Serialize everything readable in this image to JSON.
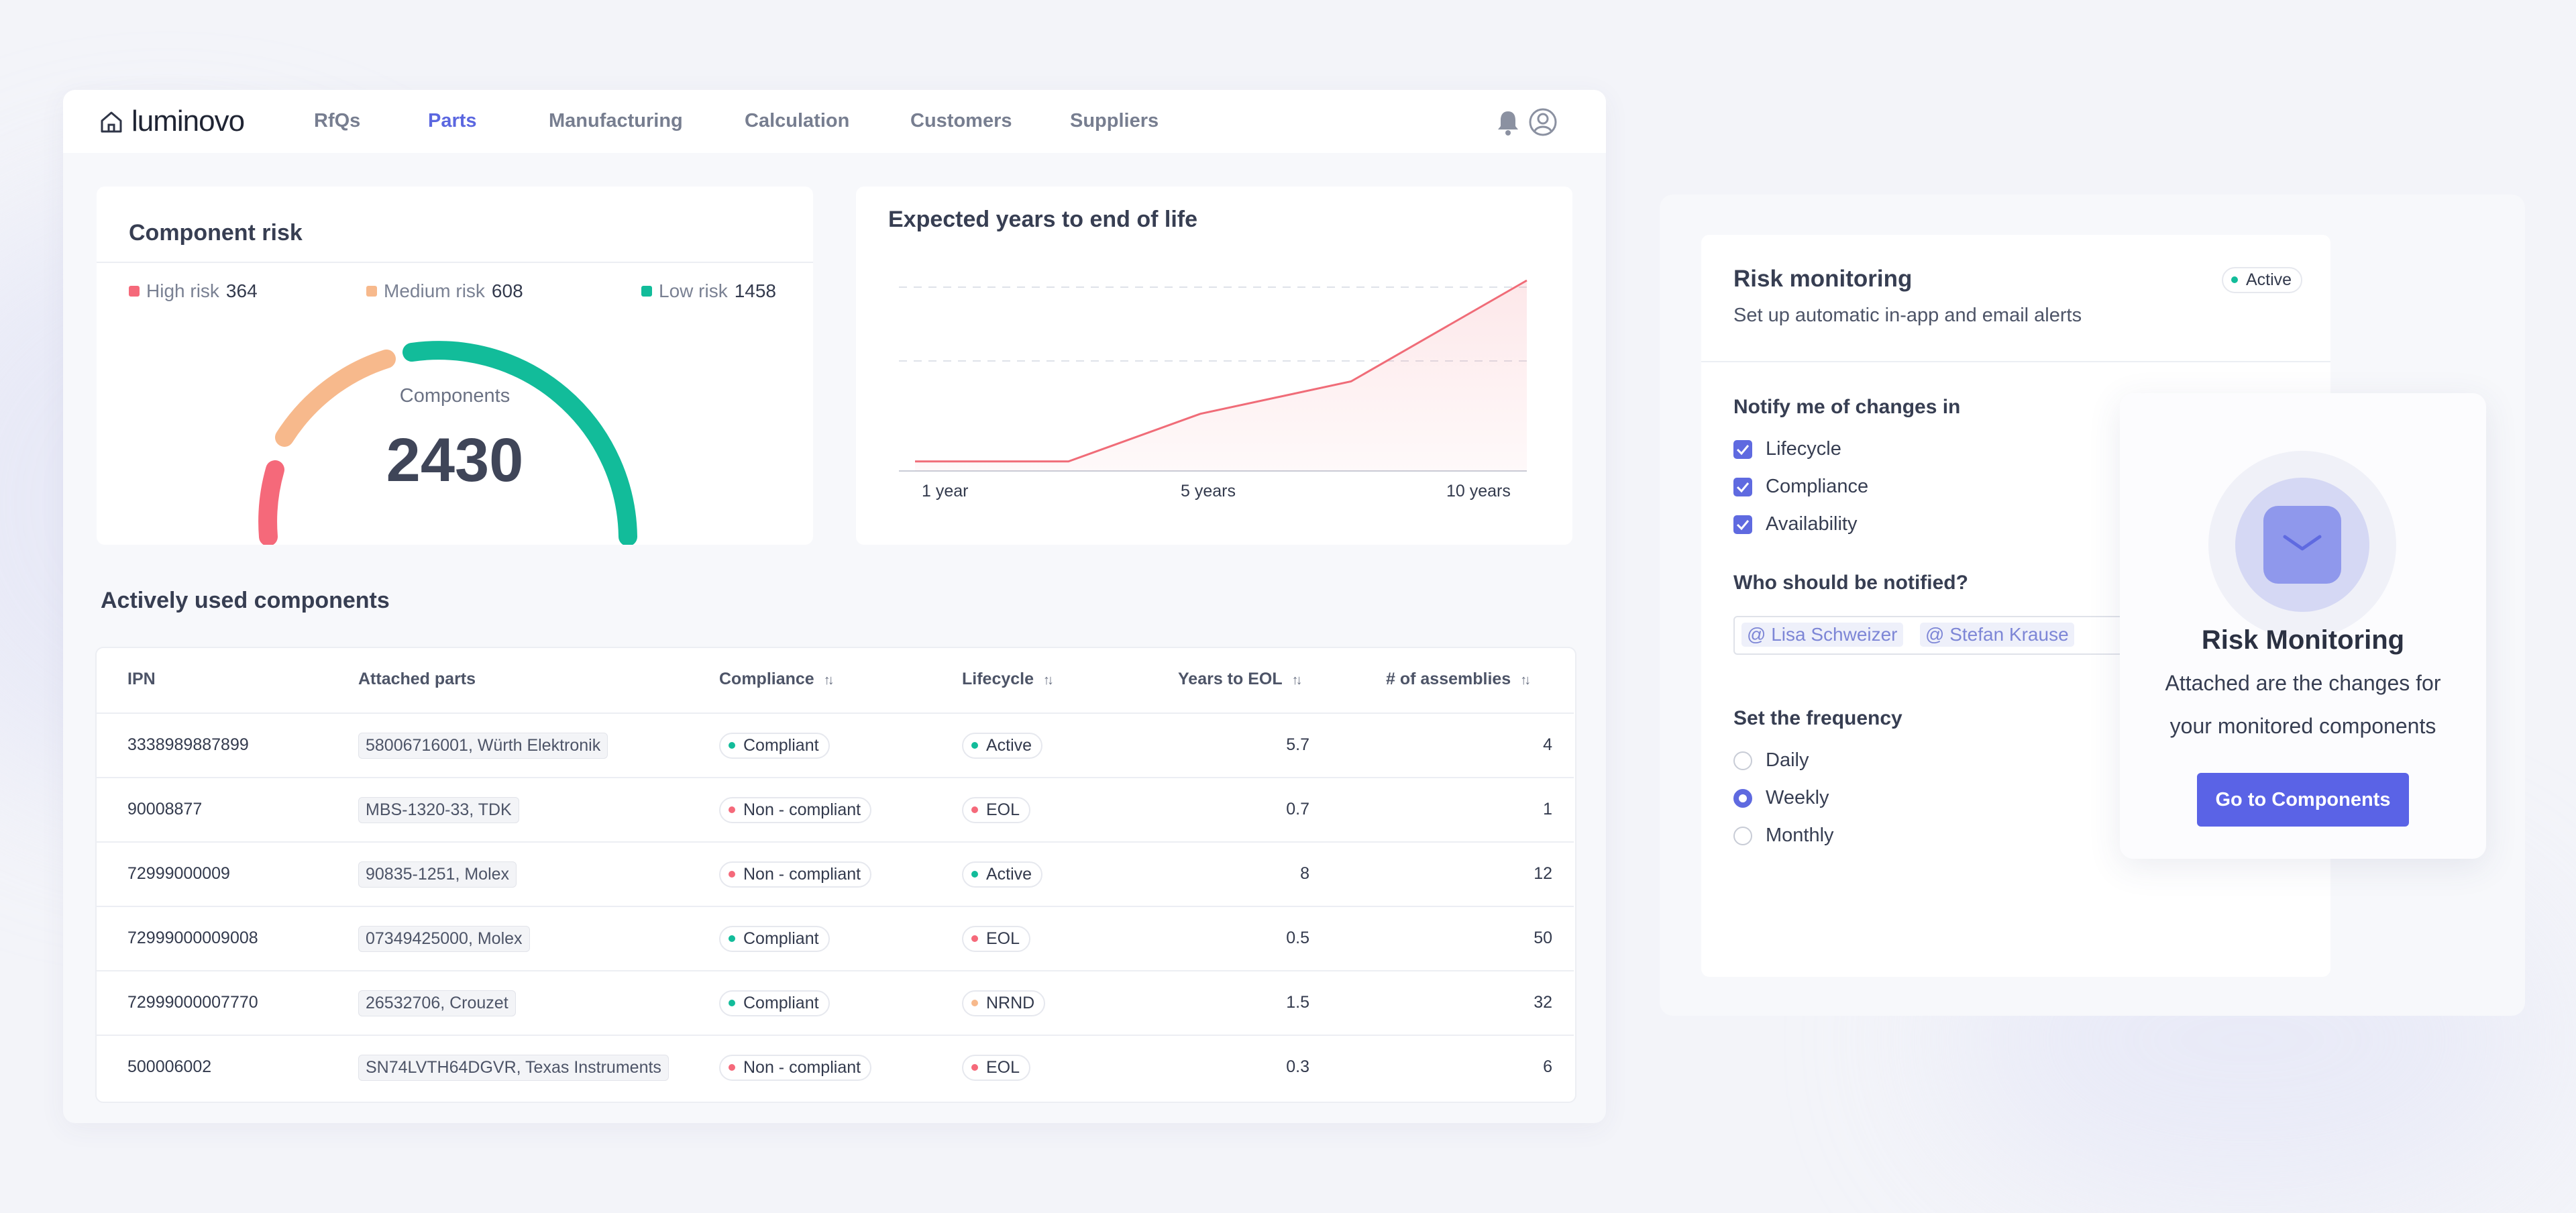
{
  "nav": {
    "logo": "luminovo",
    "items": [
      "RfQs",
      "Parts",
      "Manufacturing",
      "Calculation",
      "Customers",
      "Suppliers"
    ],
    "active": "Parts"
  },
  "risk": {
    "title": "Component risk",
    "high_label": "High risk",
    "high_value": "364",
    "medium_label": "Medium risk",
    "medium_value": "608",
    "low_label": "Low risk",
    "low_value": "1458",
    "gauge_label": "Components",
    "gauge_value": "2430",
    "colors": {
      "high": "#f5697a",
      "medium": "#f7b98c",
      "low": "#12bc9a"
    }
  },
  "eol_chart": {
    "title": "Expected years to end of life"
  },
  "chart_data": {
    "type": "area",
    "title": "Expected years to end of life",
    "x_tick_labels": [
      "1 year",
      "5 years",
      "10 years"
    ],
    "x": [
      0,
      0.27,
      0.48,
      0.72,
      1.0
    ],
    "y": [
      0.05,
      0.05,
      0.3,
      0.47,
      1.0
    ],
    "ylim": [
      0,
      1
    ],
    "grid": "horizontal-dashed",
    "color": "#f06c78"
  },
  "table": {
    "title": "Actively used components",
    "columns": [
      "IPN",
      "Attached parts",
      "Compliance",
      "Lifecycle",
      "Years to EOL",
      "# of assemblies"
    ],
    "rows": [
      {
        "ipn": "3338989887899",
        "part": "58006716001, Würth Elektronik",
        "compliance": "Compliant",
        "lifecycle": "Active",
        "years": "5.7",
        "assemblies": "4"
      },
      {
        "ipn": "90008877",
        "part": "MBS-1320-33, TDK",
        "compliance": "Non - compliant",
        "lifecycle": "EOL",
        "years": "0.7",
        "assemblies": "1"
      },
      {
        "ipn": "72999000009",
        "part": "90835-1251, Molex",
        "compliance": "Non - compliant",
        "lifecycle": "Active",
        "years": "8",
        "assemblies": "12"
      },
      {
        "ipn": "72999000009008",
        "part": "07349425000, Molex",
        "compliance": "Compliant",
        "lifecycle": "EOL",
        "years": "0.5",
        "assemblies": "50"
      },
      {
        "ipn": "72999000007770",
        "part": "26532706, Crouzet",
        "compliance": "Compliant",
        "lifecycle": "NRND",
        "years": "1.5",
        "assemblies": "32"
      },
      {
        "ipn": "500006002",
        "part": "SN74LVTH64DGVR, Texas Instruments",
        "compliance": "Non - compliant",
        "lifecycle": "EOL",
        "years": "0.3",
        "assemblies": "6"
      }
    ],
    "status_colors": {
      "green": "#12bc9a",
      "red": "#f5697a",
      "orange": "#f7b98c"
    }
  },
  "monitor": {
    "title": "Risk monitoring",
    "subtitle": "Set up automatic in-app and email alerts",
    "badge": "Active",
    "notify_title": "Notify me of changes in",
    "checks": [
      "Lifecycle",
      "Compliance",
      "Availability"
    ],
    "who_title": "Who should be notified?",
    "people": [
      "@ Lisa Schweizer",
      "@ Stefan Krause"
    ],
    "freq_title": "Set the frequency",
    "freq_options": [
      "Daily",
      "Weekly",
      "Monthly"
    ],
    "freq_selected": "Weekly"
  },
  "popup": {
    "title": "Risk Monitoring",
    "line1": "Attached are the changes for",
    "line2": "your monitored components",
    "button": "Go to Components"
  }
}
